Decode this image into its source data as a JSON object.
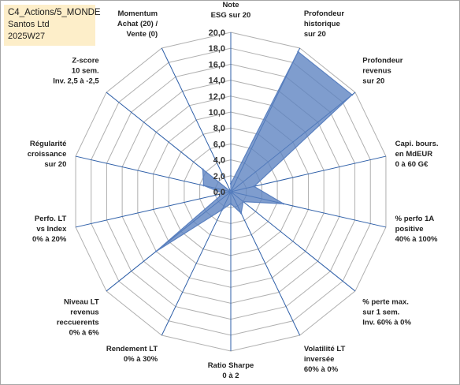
{
  "info": {
    "line1": "C4_Actions/5_MONDE",
    "line2": "Santos Ltd",
    "line3": "2025W27"
  },
  "chart_data": {
    "type": "radar",
    "title": "",
    "rmax": 20,
    "ticks": [
      "0,0",
      "2,0",
      "4,0",
      "6,0",
      "8,0",
      "10,0",
      "12,0",
      "14,0",
      "16,0",
      "18,0",
      "20,0"
    ],
    "axes": [
      [
        "Note",
        "ESG sur 20"
      ],
      [
        "Profondeur",
        "historique",
        "sur 20"
      ],
      [
        "Profondeur",
        "revenus",
        "sur 20"
      ],
      [
        "Capi. bours.",
        "en MdEUR",
        "0 à 60 G€"
      ],
      [
        "% perfo 1A",
        "positive",
        "40% à 100%"
      ],
      [
        "% perte max.",
        "sur 1 sem.",
        "Inv. 60% à 0%"
      ],
      [
        "Volatilité LT",
        "inversée",
        "60% à 0%"
      ],
      [
        "Ratio Sharpe",
        "0 à 2"
      ],
      [
        "Rendement LT",
        "0% à 30%"
      ],
      [
        "Niveau LT",
        "revenus",
        "reccuerents",
        "0% à 6%"
      ],
      [
        "Perfo. LT",
        "vs Index",
        "0% à 20%"
      ],
      [
        "Régularité",
        "croissance",
        "sur 20"
      ],
      [
        "Z-score",
        "10 sem.",
        "Inv. 2,5 à -2,5"
      ],
      [
        "Momentum",
        "Achat (20) /",
        "Vente (0)"
      ]
    ],
    "series": [
      {
        "values": [
          1.0,
          19.5,
          19.5,
          3.0,
          6.8,
          2.0,
          3.0,
          1.5,
          2.5,
          12.0,
          1.0,
          3.5,
          4.5,
          0.0
        ],
        "color": "#5b81c0",
        "fill": "#5b81c0",
        "fill_opacity": 0.78
      }
    ],
    "grid": true,
    "grid_color": "#b0b0b0",
    "spoke_color": "#2e5fa8"
  }
}
